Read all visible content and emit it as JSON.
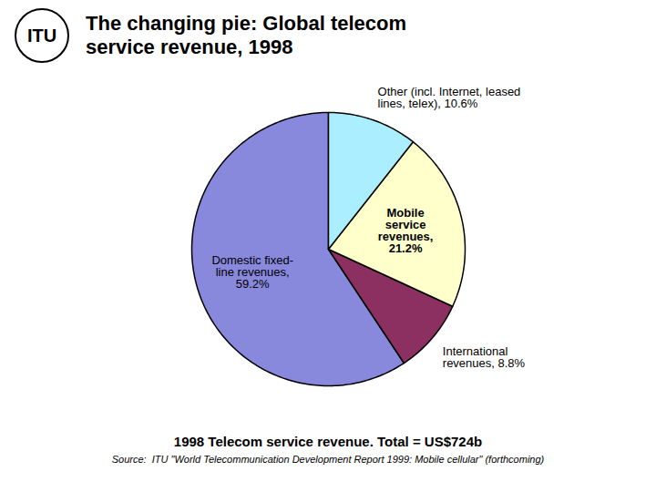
{
  "chart_data": {
    "type": "pie",
    "title": "The changing pie: Global telecom\nservice revenue, 1998",
    "categories": [
      "Domestic fixed-\nline revenues,\n59.2%",
      "International\nrevenues, 8.8%",
      "Mobile\nservice\nrevenues,\n21.2%",
      "Other (incl. Internet, leased\nlines, telex), 10.6%"
    ],
    "values": [
      59.2,
      8.8,
      21.2,
      10.6
    ],
    "colors": [
      "#8888dd",
      "#8b3060",
      "#ffffcc",
      "#aaeeff"
    ],
    "annotations": [
      "ITU",
      "1998 Telecom service revenue. Total = US$724b",
      "Source:  ITU \"World Telecommunication Development Report 1999: Mobile cellular\" (forthcoming)"
    ]
  }
}
